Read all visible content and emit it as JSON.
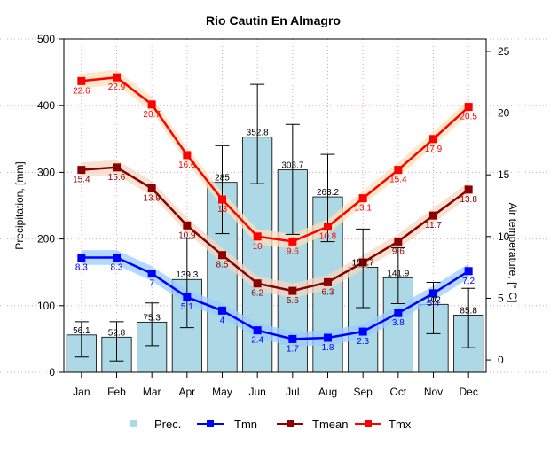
{
  "chart_data": {
    "type": "bar+line",
    "title": "Rio Cautin En Almagro",
    "categories": [
      "Jan",
      "Feb",
      "Mar",
      "Apr",
      "May",
      "Jun",
      "Jul",
      "Aug",
      "Sep",
      "Oct",
      "Nov",
      "Dec"
    ],
    "left_axis": {
      "label": "Precipitation, [mm]",
      "range": [
        0,
        500
      ],
      "ticks": [
        0,
        100,
        200,
        300,
        400,
        500
      ]
    },
    "right_axis": {
      "label": "Air temperature, [° C]",
      "range": [
        -1,
        26
      ],
      "ticks": [
        0,
        5,
        10,
        15,
        20,
        25
      ]
    },
    "grid": true,
    "legend_position": "bottom",
    "precipitation": {
      "name": "Prec.",
      "color": "#add8e6",
      "values": [
        56.1,
        52.8,
        75.3,
        139.3,
        285,
        352.8,
        303.7,
        263.2,
        157.7,
        141.9,
        102,
        85.8
      ],
      "value_labels": [
        "56.1",
        "52.8",
        "75.3",
        "139.3",
        "285",
        "352.8",
        "303.7",
        "263.2",
        "157.7",
        "141.9",
        "102",
        "85.8"
      ],
      "error_low": [
        23,
        17,
        40,
        67,
        208,
        283,
        207,
        196,
        97,
        103,
        58,
        37
      ],
      "error_high": [
        76,
        76,
        104,
        201,
        340,
        432,
        372,
        327,
        215,
        187,
        135,
        126
      ]
    },
    "series": [
      {
        "name": "Tmn",
        "color": "#0000ff",
        "band_color": "#99ccff",
        "values": [
          8.3,
          8.3,
          7.0,
          5.1,
          4.0,
          2.4,
          1.7,
          1.8,
          2.3,
          3.8,
          5.4,
          7.2
        ],
        "labels": [
          "8.3",
          "8.3",
          "7",
          "5.1",
          "4",
          "2.4",
          "1.7",
          "1.8",
          "2.3",
          "3.8",
          "5.4",
          "7.2"
        ]
      },
      {
        "name": "Tmean",
        "color": "#8b0000",
        "band_color": "#f4d7c0",
        "values": [
          15.4,
          15.6,
          13.9,
          10.9,
          8.5,
          6.2,
          5.6,
          6.3,
          7.9,
          9.6,
          11.7,
          13.8
        ],
        "labels": [
          "15.4",
          "15.6",
          "13.9",
          "10.9",
          "8.5",
          "6.2",
          "5.6",
          "6.3",
          "",
          "9.6",
          "11.7",
          "13.8"
        ]
      },
      {
        "name": "Tmx",
        "color": "#ff0000",
        "band_color": "#fde0bb",
        "values": [
          22.6,
          22.9,
          20.7,
          16.6,
          13.0,
          10.0,
          9.6,
          10.8,
          13.1,
          15.4,
          17.9,
          20.5
        ],
        "labels": [
          "22.6",
          "22.9",
          "20.7",
          "16.6",
          "13",
          "10",
          "9.6",
          "10.8",
          "13.1",
          "15.4",
          "17.9",
          "20.5"
        ]
      }
    ]
  }
}
